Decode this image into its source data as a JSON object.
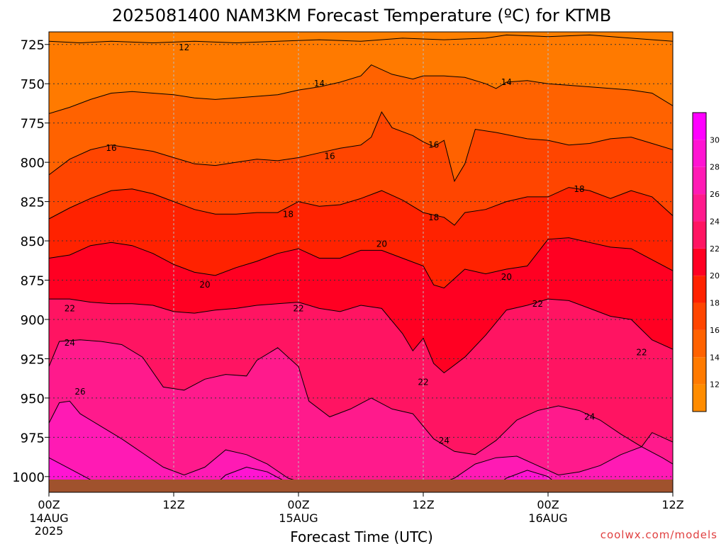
{
  "chart_data": {
    "type": "heatmap",
    "title": "2025081400 NAM3KM Forecast Temperature (ºC) for KTMB",
    "xlabel": "Forecast Time (UTC)",
    "ylabel": "",
    "y_axis_direction": "decreasing upward (pressure, hPa)",
    "ylim": [
      1010,
      717
    ],
    "y_ticks": [
      725,
      750,
      775,
      800,
      825,
      850,
      875,
      900,
      925,
      950,
      975,
      1000
    ],
    "x_range_hours": [
      0,
      60
    ],
    "x_ticks": [
      {
        "hour": 0,
        "label": "00Z",
        "sub": "14AUG",
        "sub2": "2025"
      },
      {
        "hour": 12,
        "label": "12Z",
        "sub": "",
        "sub2": ""
      },
      {
        "hour": 24,
        "label": "00Z",
        "sub": "15AUG",
        "sub2": ""
      },
      {
        "hour": 36,
        "label": "12Z",
        "sub": "",
        "sub2": ""
      },
      {
        "hour": 48,
        "label": "00Z",
        "sub": "16AUG",
        "sub2": ""
      },
      {
        "hour": 60,
        "label": "12Z",
        "sub": "",
        "sub2": ""
      }
    ],
    "grid": true,
    "ground_level_hpa": 1011,
    "ground_color": "#a0522d",
    "colorbar": {
      "placement": "right",
      "levels": [
        12,
        14,
        16,
        18,
        20,
        22,
        24,
        26,
        28,
        30
      ],
      "colors": [
        "#ff8c00",
        "#ff7a00",
        "#ff6200",
        "#ff4500",
        "#ff2200",
        "#ff0022",
        "#ff1462",
        "#ff1a8c",
        "#ff1ab4",
        "#ff14d2",
        "#ff00ff"
      ]
    },
    "contours": [
      {
        "value": 12,
        "points": [
          [
            0,
            723
          ],
          [
            3,
            724
          ],
          [
            6,
            723
          ],
          [
            10,
            724
          ],
          [
            14,
            723
          ],
          [
            18,
            724
          ],
          [
            22,
            723
          ],
          [
            26,
            722
          ],
          [
            30,
            723
          ],
          [
            34,
            721
          ],
          [
            38,
            722
          ],
          [
            42,
            721
          ],
          [
            44,
            719
          ],
          [
            48,
            720
          ],
          [
            52,
            719
          ],
          [
            56,
            721
          ],
          [
            60,
            723
          ]
        ]
      },
      {
        "value": 14,
        "points": [
          [
            0,
            769
          ],
          [
            2,
            765
          ],
          [
            4,
            760
          ],
          [
            6,
            756
          ],
          [
            8,
            755
          ],
          [
            10,
            756
          ],
          [
            12,
            757
          ],
          [
            14,
            759
          ],
          [
            16,
            760
          ],
          [
            18,
            759
          ],
          [
            20,
            758
          ],
          [
            22,
            757
          ],
          [
            24,
            754
          ],
          [
            26,
            752
          ],
          [
            28,
            749
          ],
          [
            30,
            745
          ],
          [
            31,
            738
          ],
          [
            33,
            744
          ],
          [
            35,
            747
          ],
          [
            36,
            745
          ],
          [
            38,
            745
          ],
          [
            40,
            746
          ],
          [
            42,
            750
          ],
          [
            43,
            753
          ],
          [
            44,
            749
          ],
          [
            46,
            748
          ],
          [
            48,
            750
          ],
          [
            50,
            751
          ],
          [
            52,
            752
          ],
          [
            54,
            753
          ],
          [
            56,
            754
          ],
          [
            58,
            756
          ],
          [
            60,
            764
          ]
        ]
      },
      {
        "value": 16,
        "points": [
          [
            0,
            808
          ],
          [
            2,
            798
          ],
          [
            4,
            792
          ],
          [
            6,
            789
          ],
          [
            8,
            791
          ],
          [
            10,
            793
          ],
          [
            12,
            797
          ],
          [
            14,
            801
          ],
          [
            16,
            802
          ],
          [
            18,
            800
          ],
          [
            20,
            798
          ],
          [
            22,
            799
          ],
          [
            24,
            797
          ],
          [
            26,
            794
          ],
          [
            28,
            791
          ],
          [
            30,
            789
          ],
          [
            31,
            784
          ],
          [
            32,
            768
          ],
          [
            33,
            778
          ],
          [
            35,
            783
          ],
          [
            36,
            787
          ],
          [
            37,
            790
          ],
          [
            38,
            786
          ],
          [
            39,
            812
          ],
          [
            40,
            801
          ],
          [
            41,
            779
          ],
          [
            43,
            781
          ],
          [
            46,
            785
          ],
          [
            48,
            786
          ],
          [
            50,
            789
          ],
          [
            52,
            788
          ],
          [
            54,
            785
          ],
          [
            56,
            784
          ],
          [
            58,
            788
          ],
          [
            60,
            792
          ]
        ]
      },
      {
        "value": 18,
        "points": [
          [
            0,
            836
          ],
          [
            2,
            829
          ],
          [
            4,
            823
          ],
          [
            6,
            818
          ],
          [
            8,
            817
          ],
          [
            10,
            820
          ],
          [
            12,
            825
          ],
          [
            14,
            830
          ],
          [
            16,
            833
          ],
          [
            18,
            833
          ],
          [
            20,
            832
          ],
          [
            22,
            832
          ],
          [
            24,
            825
          ],
          [
            26,
            828
          ],
          [
            28,
            827
          ],
          [
            30,
            823
          ],
          [
            32,
            818
          ],
          [
            34,
            824
          ],
          [
            36,
            832
          ],
          [
            38,
            835
          ],
          [
            39,
            840
          ],
          [
            40,
            832
          ],
          [
            42,
            830
          ],
          [
            44,
            825
          ],
          [
            46,
            822
          ],
          [
            48,
            822
          ],
          [
            50,
            816
          ],
          [
            52,
            818
          ],
          [
            54,
            823
          ],
          [
            56,
            818
          ],
          [
            58,
            822
          ],
          [
            60,
            834
          ]
        ]
      },
      {
        "value": 20,
        "points": [
          [
            0,
            861
          ],
          [
            2,
            859
          ],
          [
            4,
            853
          ],
          [
            6,
            851
          ],
          [
            8,
            853
          ],
          [
            10,
            858
          ],
          [
            12,
            865
          ],
          [
            14,
            870
          ],
          [
            16,
            872
          ],
          [
            18,
            867
          ],
          [
            20,
            863
          ],
          [
            22,
            858
          ],
          [
            24,
            855
          ],
          [
            26,
            861
          ],
          [
            28,
            861
          ],
          [
            30,
            856
          ],
          [
            32,
            856
          ],
          [
            34,
            861
          ],
          [
            36,
            866
          ],
          [
            37,
            878
          ],
          [
            38,
            880
          ],
          [
            40,
            868
          ],
          [
            42,
            871
          ],
          [
            44,
            868
          ],
          [
            46,
            866
          ],
          [
            48,
            849
          ],
          [
            50,
            848
          ],
          [
            52,
            851
          ],
          [
            54,
            854
          ],
          [
            56,
            855
          ],
          [
            58,
            862
          ],
          [
            60,
            869
          ]
        ]
      },
      {
        "value": 22,
        "points": [
          [
            0,
            887
          ],
          [
            2,
            887
          ],
          [
            4,
            889
          ],
          [
            6,
            890
          ],
          [
            8,
            890
          ],
          [
            10,
            891
          ],
          [
            12,
            895
          ],
          [
            14,
            896
          ],
          [
            16,
            894
          ],
          [
            18,
            893
          ],
          [
            20,
            891
          ],
          [
            22,
            890
          ],
          [
            24,
            889
          ],
          [
            26,
            893
          ],
          [
            28,
            895
          ],
          [
            30,
            891
          ],
          [
            32,
            893
          ],
          [
            34,
            909
          ],
          [
            35,
            920
          ],
          [
            36,
            912
          ],
          [
            37,
            928
          ],
          [
            38,
            934
          ],
          [
            40,
            924
          ],
          [
            42,
            910
          ],
          [
            44,
            894
          ],
          [
            46,
            891
          ],
          [
            48,
            887
          ],
          [
            50,
            888
          ],
          [
            52,
            893
          ],
          [
            54,
            898
          ],
          [
            56,
            900
          ],
          [
            58,
            913
          ],
          [
            60,
            919
          ]
        ]
      },
      {
        "value": 24,
        "points": [
          [
            0,
            930
          ],
          [
            1,
            914
          ],
          [
            3,
            913
          ],
          [
            5,
            914
          ],
          [
            7,
            916
          ],
          [
            9,
            924
          ],
          [
            11,
            943
          ],
          [
            13,
            945
          ],
          [
            15,
            938
          ],
          [
            17,
            935
          ],
          [
            19,
            936
          ],
          [
            20,
            926
          ],
          [
            22,
            918
          ],
          [
            24,
            930
          ],
          [
            25,
            952
          ],
          [
            27,
            962
          ],
          [
            29,
            957
          ],
          [
            31,
            950
          ],
          [
            33,
            957
          ],
          [
            35,
            960
          ],
          [
            37,
            976
          ],
          [
            39,
            984
          ],
          [
            41,
            986
          ],
          [
            43,
            977
          ],
          [
            45,
            964
          ],
          [
            47,
            958
          ],
          [
            49,
            955
          ],
          [
            51,
            958
          ],
          [
            53,
            964
          ],
          [
            55,
            973
          ],
          [
            57,
            981
          ],
          [
            58,
            972
          ],
          [
            60,
            978
          ]
        ]
      },
      {
        "value": 26,
        "points": [
          [
            0,
            966
          ],
          [
            1,
            953
          ],
          [
            2,
            952
          ],
          [
            3,
            960
          ],
          [
            5,
            968
          ],
          [
            7,
            976
          ],
          [
            9,
            985
          ],
          [
            11,
            994
          ],
          [
            13,
            999
          ],
          [
            15,
            994
          ],
          [
            17,
            983
          ],
          [
            19,
            986
          ],
          [
            21,
            992
          ],
          [
            23,
            1001
          ],
          [
            25,
            1005
          ],
          [
            27,
            1004
          ],
          [
            29,
            1007
          ],
          [
            31,
            1006
          ],
          [
            33,
            1005
          ],
          [
            35,
            1003
          ],
          [
            37,
            1006
          ],
          [
            39,
            1001
          ],
          [
            41,
            992
          ],
          [
            43,
            988
          ],
          [
            45,
            987
          ],
          [
            47,
            993
          ],
          [
            49,
            999
          ],
          [
            51,
            997
          ],
          [
            53,
            993
          ],
          [
            55,
            986
          ],
          [
            57,
            981
          ],
          [
            59,
            988
          ],
          [
            60,
            992
          ]
        ]
      },
      {
        "value": 28,
        "points": [
          [
            0,
            988
          ],
          [
            2,
            995
          ],
          [
            4,
            1002
          ],
          [
            6,
            1008
          ],
          [
            8,
            1011
          ]
        ]
      },
      {
        "value": 28,
        "points": [
          [
            15,
            1011
          ],
          [
            17,
            999
          ],
          [
            19,
            994
          ],
          [
            21,
            997
          ],
          [
            23,
            1004
          ],
          [
            24,
            1011
          ]
        ]
      },
      {
        "value": 28,
        "points": [
          [
            42,
            1011
          ],
          [
            44,
            1001
          ],
          [
            46,
            996
          ],
          [
            48,
            1000
          ],
          [
            50,
            1011
          ]
        ]
      }
    ],
    "contour_labels": [
      {
        "text": "12",
        "hour": 13,
        "p": 727
      },
      {
        "text": "14",
        "hour": 26,
        "p": 750
      },
      {
        "text": "14",
        "hour": 44,
        "p": 749
      },
      {
        "text": "16",
        "hour": 6,
        "p": 791
      },
      {
        "text": "16",
        "hour": 27,
        "p": 796
      },
      {
        "text": "16",
        "hour": 37,
        "p": 789
      },
      {
        "text": "18",
        "hour": 23,
        "p": 833
      },
      {
        "text": "18",
        "hour": 37,
        "p": 835
      },
      {
        "text": "18",
        "hour": 51,
        "p": 817
      },
      {
        "text": "20",
        "hour": 15,
        "p": 878
      },
      {
        "text": "20",
        "hour": 32,
        "p": 852
      },
      {
        "text": "20",
        "hour": 44,
        "p": 873
      },
      {
        "text": "22",
        "hour": 2,
        "p": 893
      },
      {
        "text": "22",
        "hour": 24,
        "p": 893
      },
      {
        "text": "22",
        "hour": 47,
        "p": 890
      },
      {
        "text": "22",
        "hour": 36,
        "p": 940
      },
      {
        "text": "22",
        "hour": 57,
        "p": 921
      },
      {
        "text": "24",
        "hour": 2,
        "p": 915
      },
      {
        "text": "24",
        "hour": 38,
        "p": 977
      },
      {
        "text": "24",
        "hour": 52,
        "p": 962
      },
      {
        "text": "26",
        "hour": 3,
        "p": 946
      }
    ]
  },
  "watermark": "coolwx.com/models"
}
